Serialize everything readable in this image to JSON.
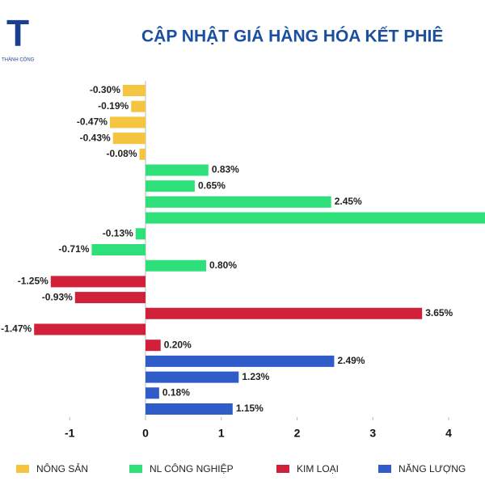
{
  "brand": {
    "letter": "T",
    "tagline": "THÀNH CÔNG"
  },
  "chart_data": {
    "type": "hbar",
    "title": "CẬP NHẬT GIÁ HÀNG HÓA KẾT PHIÊ",
    "categories": [
      null,
      null,
      null,
      null,
      null,
      null,
      null,
      null,
      null,
      null,
      null,
      null,
      null,
      null,
      null,
      null,
      null,
      null,
      null,
      null,
      null
    ],
    "series": [
      {
        "name": "NÔNG SẢN",
        "color": "#f5c542",
        "values": [
          -0.3,
          -0.19,
          -0.47,
          -0.43,
          -0.08,
          null,
          null,
          null,
          null,
          null,
          null,
          null,
          null,
          null,
          null,
          null,
          null,
          null,
          null,
          null,
          null
        ],
        "value_labels": [
          "-0.30%",
          "-0.19%",
          "-0.47%",
          "-0.43%",
          "-0.08%",
          null,
          null,
          null,
          null,
          null,
          null,
          null,
          null,
          null,
          null,
          null,
          null,
          null,
          null,
          null,
          null
        ]
      },
      {
        "name": "NL CÔNG NGHIỆP",
        "color": "#2de07a",
        "values": [
          null,
          null,
          null,
          null,
          null,
          0.83,
          0.65,
          2.45,
          4.6,
          -0.13,
          -0.71,
          0.8,
          null,
          null,
          null,
          null,
          null,
          null,
          null,
          null,
          null
        ],
        "value_labels": [
          null,
          null,
          null,
          null,
          null,
          "0.83%",
          "0.65%",
          "2.45%",
          null,
          "-0.13%",
          "-0.71%",
          "0.80%",
          null,
          null,
          null,
          null,
          null,
          null,
          null,
          null,
          null
        ]
      },
      {
        "name": "KIM LOẠI",
        "color": "#d0203a",
        "values": [
          null,
          null,
          null,
          null,
          null,
          null,
          null,
          null,
          null,
          null,
          null,
          null,
          -1.25,
          -0.93,
          3.65,
          -1.47,
          0.2,
          null,
          null,
          null,
          null
        ],
        "value_labels": [
          null,
          null,
          null,
          null,
          null,
          null,
          null,
          null,
          null,
          null,
          null,
          null,
          "-1.25%",
          "-0.93%",
          "3.65%",
          "-1.47%",
          "0.20%",
          null,
          null,
          null,
          null
        ]
      },
      {
        "name": "NĂNG LƯỢNG",
        "color": "#2f5cc8",
        "values": [
          null,
          null,
          null,
          null,
          null,
          null,
          null,
          null,
          null,
          null,
          null,
          null,
          null,
          null,
          null,
          null,
          null,
          2.49,
          1.23,
          0.18,
          1.15
        ],
        "value_labels": [
          null,
          null,
          null,
          null,
          null,
          null,
          null,
          null,
          null,
          null,
          null,
          null,
          null,
          null,
          null,
          null,
          null,
          "2.49%",
          "1.23%",
          "0.18%",
          "1.15%"
        ]
      }
    ],
    "xlim": [
      -1.92,
      4.48
    ],
    "xticks": [
      -1,
      0,
      1,
      2,
      3,
      4
    ],
    "legend": "bottom"
  }
}
